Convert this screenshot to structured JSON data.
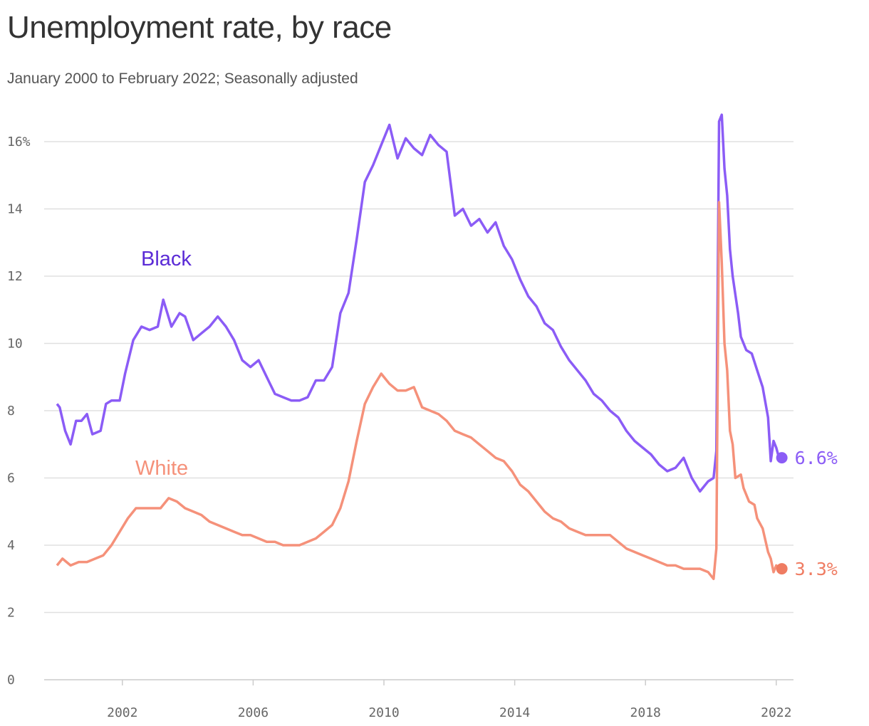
{
  "title": "Unemployment rate, by race",
  "subtitle": "January 2000 to February 2022; Seasonally adjusted",
  "colors": {
    "black": "#8b5cf6",
    "black_label": "#5b2bd6",
    "white": "#f5917a",
    "white_label": "#f5917a",
    "white_end": "#ef7c62"
  },
  "chart_data": {
    "type": "line",
    "title": "Unemployment rate, by race",
    "subtitle": "January 2000 to February 2022; Seasonally adjusted",
    "xlabel": "",
    "ylabel": "",
    "xlim": [
      "2000-01",
      "2022-02"
    ],
    "ylim": [
      0,
      16
    ],
    "y_ticks": [
      0,
      2,
      4,
      6,
      8,
      10,
      12,
      14,
      16
    ],
    "y_tick_labels": [
      "0",
      "2",
      "4",
      "6",
      "8",
      "10",
      "12",
      "14",
      "16%"
    ],
    "x_ticks": [
      "2002-01",
      "2006-01",
      "2010-01",
      "2014-01",
      "2018-01",
      "2022-01"
    ],
    "x_tick_labels": [
      "2002",
      "2006",
      "2010",
      "2014",
      "2018",
      "2022"
    ],
    "grid": true,
    "series": [
      {
        "name": "Black",
        "end_label": "6.6%",
        "points": [
          [
            "2000-01",
            8.2
          ],
          [
            "2000-02",
            8.1
          ],
          [
            "2000-04",
            7.4
          ],
          [
            "2000-06",
            7.0
          ],
          [
            "2000-08",
            7.7
          ],
          [
            "2000-10",
            7.7
          ],
          [
            "2000-12",
            7.9
          ],
          [
            "2001-02",
            7.3
          ],
          [
            "2001-05",
            7.4
          ],
          [
            "2001-07",
            8.2
          ],
          [
            "2001-09",
            8.3
          ],
          [
            "2001-12",
            8.3
          ],
          [
            "2002-02",
            9.1
          ],
          [
            "2002-05",
            10.1
          ],
          [
            "2002-08",
            10.5
          ],
          [
            "2002-11",
            10.4
          ],
          [
            "2003-02",
            10.5
          ],
          [
            "2003-04",
            11.3
          ],
          [
            "2003-07",
            10.5
          ],
          [
            "2003-10",
            10.9
          ],
          [
            "2003-12",
            10.8
          ],
          [
            "2004-03",
            10.1
          ],
          [
            "2004-06",
            10.3
          ],
          [
            "2004-09",
            10.5
          ],
          [
            "2004-12",
            10.8
          ],
          [
            "2005-03",
            10.5
          ],
          [
            "2005-06",
            10.1
          ],
          [
            "2005-09",
            9.5
          ],
          [
            "2005-12",
            9.3
          ],
          [
            "2006-03",
            9.5
          ],
          [
            "2006-06",
            9.0
          ],
          [
            "2006-09",
            8.5
          ],
          [
            "2006-12",
            8.4
          ],
          [
            "2007-03",
            8.3
          ],
          [
            "2007-06",
            8.3
          ],
          [
            "2007-09",
            8.4
          ],
          [
            "2007-12",
            8.9
          ],
          [
            "2008-03",
            8.9
          ],
          [
            "2008-06",
            9.3
          ],
          [
            "2008-09",
            10.9
          ],
          [
            "2008-12",
            11.5
          ],
          [
            "2009-03",
            13.1
          ],
          [
            "2009-06",
            14.8
          ],
          [
            "2009-09",
            15.3
          ],
          [
            "2009-12",
            15.9
          ],
          [
            "2010-03",
            16.5
          ],
          [
            "2010-06",
            15.5
          ],
          [
            "2010-09",
            16.1
          ],
          [
            "2010-12",
            15.8
          ],
          [
            "2011-03",
            15.6
          ],
          [
            "2011-06",
            16.2
          ],
          [
            "2011-09",
            15.9
          ],
          [
            "2011-12",
            15.7
          ],
          [
            "2012-03",
            13.8
          ],
          [
            "2012-06",
            14.0
          ],
          [
            "2012-09",
            13.5
          ],
          [
            "2012-12",
            13.7
          ],
          [
            "2013-03",
            13.3
          ],
          [
            "2013-06",
            13.6
          ],
          [
            "2013-09",
            12.9
          ],
          [
            "2013-12",
            12.5
          ],
          [
            "2014-03",
            11.9
          ],
          [
            "2014-06",
            11.4
          ],
          [
            "2014-09",
            11.1
          ],
          [
            "2014-12",
            10.6
          ],
          [
            "2015-03",
            10.4
          ],
          [
            "2015-06",
            9.9
          ],
          [
            "2015-09",
            9.5
          ],
          [
            "2015-12",
            9.2
          ],
          [
            "2016-03",
            8.9
          ],
          [
            "2016-06",
            8.5
          ],
          [
            "2016-09",
            8.3
          ],
          [
            "2016-12",
            8.0
          ],
          [
            "2017-03",
            7.8
          ],
          [
            "2017-06",
            7.4
          ],
          [
            "2017-09",
            7.1
          ],
          [
            "2017-12",
            6.9
          ],
          [
            "2018-03",
            6.7
          ],
          [
            "2018-06",
            6.4
          ],
          [
            "2018-09",
            6.2
          ],
          [
            "2018-12",
            6.3
          ],
          [
            "2019-03",
            6.6
          ],
          [
            "2019-06",
            6.0
          ],
          [
            "2019-09",
            5.6
          ],
          [
            "2019-12",
            5.9
          ],
          [
            "2020-02",
            6.0
          ],
          [
            "2020-03",
            6.8
          ],
          [
            "2020-04",
            16.6
          ],
          [
            "2020-05",
            16.8
          ],
          [
            "2020-06",
            15.2
          ],
          [
            "2020-07",
            14.4
          ],
          [
            "2020-08",
            12.8
          ],
          [
            "2020-09",
            12.0
          ],
          [
            "2020-11",
            10.9
          ],
          [
            "2020-12",
            10.2
          ],
          [
            "2021-02",
            9.8
          ],
          [
            "2021-04",
            9.7
          ],
          [
            "2021-06",
            9.2
          ],
          [
            "2021-08",
            8.7
          ],
          [
            "2021-10",
            7.8
          ],
          [
            "2021-11",
            6.5
          ],
          [
            "2021-12",
            7.1
          ],
          [
            "2022-01",
            6.9
          ],
          [
            "2022-02",
            6.6
          ]
        ]
      },
      {
        "name": "White",
        "end_label": "3.3%",
        "points": [
          [
            "2000-01",
            3.4
          ],
          [
            "2000-03",
            3.6
          ],
          [
            "2000-06",
            3.4
          ],
          [
            "2000-09",
            3.5
          ],
          [
            "2000-12",
            3.5
          ],
          [
            "2001-03",
            3.6
          ],
          [
            "2001-06",
            3.7
          ],
          [
            "2001-09",
            4.0
          ],
          [
            "2001-12",
            4.4
          ],
          [
            "2002-03",
            4.8
          ],
          [
            "2002-06",
            5.1
          ],
          [
            "2002-09",
            5.1
          ],
          [
            "2002-12",
            5.1
          ],
          [
            "2003-03",
            5.1
          ],
          [
            "2003-06",
            5.4
          ],
          [
            "2003-09",
            5.3
          ],
          [
            "2003-12",
            5.1
          ],
          [
            "2004-03",
            5.0
          ],
          [
            "2004-06",
            4.9
          ],
          [
            "2004-09",
            4.7
          ],
          [
            "2004-12",
            4.6
          ],
          [
            "2005-03",
            4.5
          ],
          [
            "2005-06",
            4.4
          ],
          [
            "2005-09",
            4.3
          ],
          [
            "2005-12",
            4.3
          ],
          [
            "2006-03",
            4.2
          ],
          [
            "2006-06",
            4.1
          ],
          [
            "2006-09",
            4.1
          ],
          [
            "2006-12",
            4.0
          ],
          [
            "2007-03",
            4.0
          ],
          [
            "2007-06",
            4.0
          ],
          [
            "2007-09",
            4.1
          ],
          [
            "2007-12",
            4.2
          ],
          [
            "2008-03",
            4.4
          ],
          [
            "2008-06",
            4.6
          ],
          [
            "2008-09",
            5.1
          ],
          [
            "2008-12",
            5.9
          ],
          [
            "2009-03",
            7.1
          ],
          [
            "2009-06",
            8.2
          ],
          [
            "2009-09",
            8.7
          ],
          [
            "2009-12",
            9.1
          ],
          [
            "2010-03",
            8.8
          ],
          [
            "2010-06",
            8.6
          ],
          [
            "2010-09",
            8.6
          ],
          [
            "2010-12",
            8.7
          ],
          [
            "2011-03",
            8.1
          ],
          [
            "2011-06",
            8.0
          ],
          [
            "2011-09",
            7.9
          ],
          [
            "2011-12",
            7.7
          ],
          [
            "2012-03",
            7.4
          ],
          [
            "2012-06",
            7.3
          ],
          [
            "2012-09",
            7.2
          ],
          [
            "2012-12",
            7.0
          ],
          [
            "2013-03",
            6.8
          ],
          [
            "2013-06",
            6.6
          ],
          [
            "2013-09",
            6.5
          ],
          [
            "2013-12",
            6.2
          ],
          [
            "2014-03",
            5.8
          ],
          [
            "2014-06",
            5.6
          ],
          [
            "2014-09",
            5.3
          ],
          [
            "2014-12",
            5.0
          ],
          [
            "2015-03",
            4.8
          ],
          [
            "2015-06",
            4.7
          ],
          [
            "2015-09",
            4.5
          ],
          [
            "2015-12",
            4.4
          ],
          [
            "2016-03",
            4.3
          ],
          [
            "2016-06",
            4.3
          ],
          [
            "2016-09",
            4.3
          ],
          [
            "2016-12",
            4.3
          ],
          [
            "2017-03",
            4.1
          ],
          [
            "2017-06",
            3.9
          ],
          [
            "2017-09",
            3.8
          ],
          [
            "2017-12",
            3.7
          ],
          [
            "2018-03",
            3.6
          ],
          [
            "2018-06",
            3.5
          ],
          [
            "2018-09",
            3.4
          ],
          [
            "2018-12",
            3.4
          ],
          [
            "2019-03",
            3.3
          ],
          [
            "2019-06",
            3.3
          ],
          [
            "2019-09",
            3.3
          ],
          [
            "2019-12",
            3.2
          ],
          [
            "2020-02",
            3.0
          ],
          [
            "2020-03",
            3.9
          ],
          [
            "2020-04",
            14.2
          ],
          [
            "2020-05",
            12.4
          ],
          [
            "2020-06",
            10.0
          ],
          [
            "2020-07",
            9.2
          ],
          [
            "2020-08",
            7.4
          ],
          [
            "2020-09",
            7.0
          ],
          [
            "2020-10",
            6.0
          ],
          [
            "2020-12",
            6.1
          ],
          [
            "2021-01",
            5.7
          ],
          [
            "2021-03",
            5.3
          ],
          [
            "2021-05",
            5.2
          ],
          [
            "2021-06",
            4.8
          ],
          [
            "2021-08",
            4.5
          ],
          [
            "2021-10",
            3.8
          ],
          [
            "2021-11",
            3.6
          ],
          [
            "2021-12",
            3.2
          ],
          [
            "2022-01",
            3.4
          ],
          [
            "2022-02",
            3.3
          ]
        ]
      }
    ],
    "series_labels": [
      "Black",
      "White"
    ]
  }
}
